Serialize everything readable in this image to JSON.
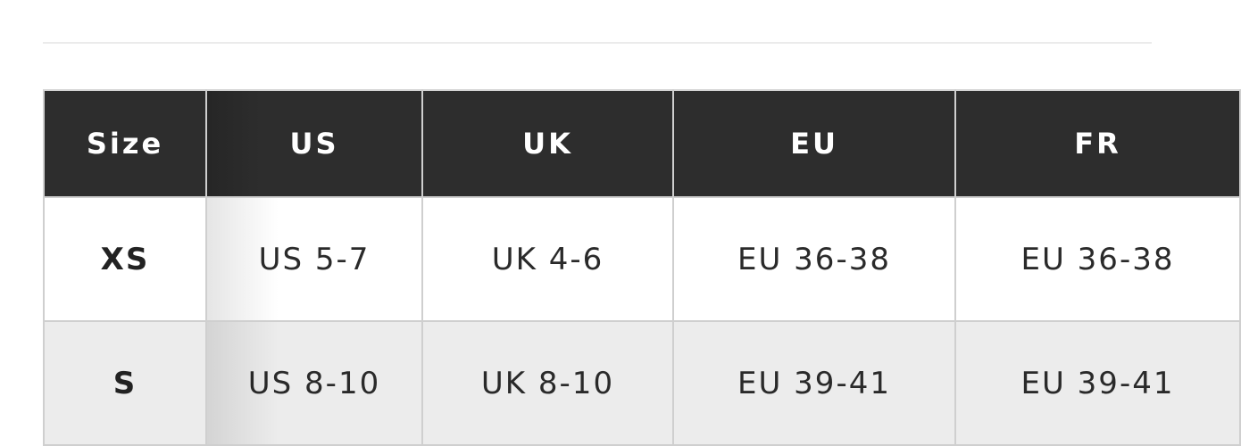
{
  "table": {
    "headers": [
      "Size",
      "US",
      "UK",
      "EU",
      "FR"
    ],
    "rows": [
      [
        "XS",
        "US 5-7",
        "UK 4-6",
        "EU 36-38",
        "EU 36-38"
      ],
      [
        "S",
        "US 8-10",
        "UK 8-10",
        "EU 39-41",
        "EU 39-41"
      ]
    ]
  },
  "colors": {
    "header_bg": "#2d2d2d",
    "header_text": "#ffffff",
    "alt_row_bg": "#ececec",
    "border": "#cfcfcf"
  }
}
